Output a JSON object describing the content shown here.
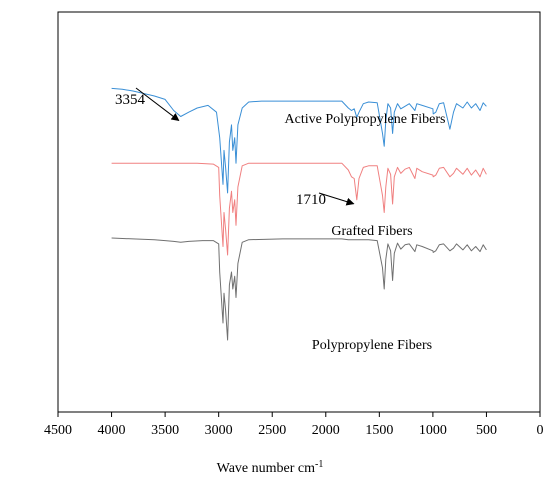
{
  "chart_data": {
    "type": "line",
    "title": "",
    "xlabel": "Wave number cm",
    "xlabel_sup": "-1",
    "ylabel": "",
    "xlim": [
      4500,
      0
    ],
    "x_reversed": true,
    "x_ticks": [
      4500,
      4000,
      3500,
      3000,
      2500,
      2000,
      1500,
      1000,
      500,
      0
    ],
    "grid": false,
    "legend": "none",
    "series": [
      {
        "name": "Active Polypropylene Fibers",
        "color": "#3a8fd6",
        "offset": 0.78,
        "points": [
          [
            4000,
            0.18
          ],
          [
            3900,
            0.17
          ],
          [
            3800,
            0.15
          ],
          [
            3700,
            0.12
          ],
          [
            3600,
            0.09
          ],
          [
            3500,
            0.05
          ],
          [
            3420,
            -0.08
          ],
          [
            3354,
            -0.15
          ],
          [
            3280,
            -0.1
          ],
          [
            3200,
            -0.05
          ],
          [
            3100,
            -0.02
          ],
          [
            3020,
            -0.1
          ],
          [
            2990,
            -0.4
          ],
          [
            2960,
            -0.95
          ],
          [
            2950,
            -0.55
          ],
          [
            2935,
            -0.75
          ],
          [
            2917,
            -1.05
          ],
          [
            2900,
            -0.45
          ],
          [
            2880,
            -0.25
          ],
          [
            2868,
            -0.55
          ],
          [
            2850,
            -0.4
          ],
          [
            2838,
            -0.7
          ],
          [
            2820,
            -0.25
          ],
          [
            2780,
            -0.05
          ],
          [
            2720,
            0.02
          ],
          [
            2600,
            0.03
          ],
          [
            2400,
            0.03
          ],
          [
            2200,
            0.03
          ],
          [
            2000,
            0.03
          ],
          [
            1850,
            0.03
          ],
          [
            1790,
            -0.05
          ],
          [
            1760,
            -0.08
          ],
          [
            1735,
            -0.06
          ],
          [
            1710,
            -0.16
          ],
          [
            1690,
            -0.1
          ],
          [
            1650,
            0.0
          ],
          [
            1600,
            0.02
          ],
          [
            1520,
            0.01
          ],
          [
            1470,
            -0.35
          ],
          [
            1455,
            -0.5
          ],
          [
            1440,
            -0.2
          ],
          [
            1420,
            0.0
          ],
          [
            1395,
            -0.05
          ],
          [
            1376,
            -0.35
          ],
          [
            1360,
            -0.1
          ],
          [
            1330,
            0.0
          ],
          [
            1300,
            -0.06
          ],
          [
            1260,
            -0.03
          ],
          [
            1220,
            0.0
          ],
          [
            1168,
            -0.08
          ],
          [
            1150,
            0.0
          ],
          [
            1100,
            -0.02
          ],
          [
            1000,
            -0.06
          ],
          [
            997,
            -0.12
          ],
          [
            973,
            -0.1
          ],
          [
            940,
            0.0
          ],
          [
            900,
            0.01
          ],
          [
            841,
            -0.3
          ],
          [
            808,
            -0.1
          ],
          [
            780,
            0.0
          ],
          [
            720,
            -0.05
          ],
          [
            680,
            0.02
          ],
          [
            640,
            -0.05
          ],
          [
            600,
            0.0
          ],
          [
            560,
            -0.08
          ],
          [
            530,
            0.01
          ],
          [
            500,
            -0.03
          ]
        ]
      },
      {
        "name": "Grafted Fibers",
        "color": "#f08080",
        "offset": 0.0,
        "points": [
          [
            4000,
            0.08
          ],
          [
            3800,
            0.08
          ],
          [
            3600,
            0.08
          ],
          [
            3400,
            0.08
          ],
          [
            3200,
            0.08
          ],
          [
            3050,
            0.07
          ],
          [
            3000,
            0.03
          ],
          [
            2990,
            -0.3
          ],
          [
            2960,
            -0.9
          ],
          [
            2950,
            -0.5
          ],
          [
            2935,
            -0.7
          ],
          [
            2917,
            -1.0
          ],
          [
            2900,
            -0.45
          ],
          [
            2880,
            -0.25
          ],
          [
            2868,
            -0.5
          ],
          [
            2850,
            -0.35
          ],
          [
            2838,
            -0.65
          ],
          [
            2820,
            -0.2
          ],
          [
            2780,
            0.05
          ],
          [
            2720,
            0.08
          ],
          [
            2400,
            0.08
          ],
          [
            2000,
            0.08
          ],
          [
            1850,
            0.08
          ],
          [
            1790,
            0.0
          ],
          [
            1760,
            -0.08
          ],
          [
            1735,
            -0.1
          ],
          [
            1710,
            -0.35
          ],
          [
            1690,
            -0.1
          ],
          [
            1650,
            0.03
          ],
          [
            1600,
            0.05
          ],
          [
            1520,
            0.05
          ],
          [
            1470,
            -0.3
          ],
          [
            1455,
            -0.5
          ],
          [
            1440,
            -0.2
          ],
          [
            1420,
            0.02
          ],
          [
            1395,
            -0.05
          ],
          [
            1376,
            -0.4
          ],
          [
            1360,
            -0.08
          ],
          [
            1330,
            0.03
          ],
          [
            1300,
            -0.04
          ],
          [
            1260,
            0.01
          ],
          [
            1220,
            0.03
          ],
          [
            1168,
            -0.1
          ],
          [
            1150,
            0.02
          ],
          [
            1100,
            -0.02
          ],
          [
            1000,
            -0.06
          ],
          [
            997,
            -0.08
          ],
          [
            973,
            -0.06
          ],
          [
            940,
            0.02
          ],
          [
            900,
            0.03
          ],
          [
            841,
            -0.08
          ],
          [
            808,
            -0.04
          ],
          [
            780,
            0.02
          ],
          [
            720,
            -0.05
          ],
          [
            680,
            0.02
          ],
          [
            640,
            -0.06
          ],
          [
            600,
            0.0
          ],
          [
            560,
            -0.08
          ],
          [
            530,
            0.02
          ],
          [
            500,
            -0.05
          ]
        ]
      },
      {
        "name": "Polypropylene Fibers",
        "color": "#707070",
        "offset": -0.9,
        "points": [
          [
            4000,
            0.1
          ],
          [
            3800,
            0.09
          ],
          [
            3600,
            0.08
          ],
          [
            3500,
            0.07
          ],
          [
            3420,
            0.06
          ],
          [
            3354,
            0.05
          ],
          [
            3280,
            0.06
          ],
          [
            3150,
            0.07
          ],
          [
            3050,
            0.07
          ],
          [
            3000,
            0.03
          ],
          [
            2990,
            -0.3
          ],
          [
            2960,
            -0.9
          ],
          [
            2950,
            -0.55
          ],
          [
            2935,
            -0.75
          ],
          [
            2917,
            -1.1
          ],
          [
            2900,
            -0.45
          ],
          [
            2880,
            -0.3
          ],
          [
            2868,
            -0.5
          ],
          [
            2850,
            -0.35
          ],
          [
            2838,
            -0.6
          ],
          [
            2820,
            -0.2
          ],
          [
            2780,
            0.05
          ],
          [
            2720,
            0.08
          ],
          [
            2400,
            0.09
          ],
          [
            2000,
            0.09
          ],
          [
            1850,
            0.09
          ],
          [
            1790,
            0.08
          ],
          [
            1650,
            0.08
          ],
          [
            1600,
            0.08
          ],
          [
            1520,
            0.07
          ],
          [
            1470,
            -0.25
          ],
          [
            1455,
            -0.5
          ],
          [
            1440,
            -0.15
          ],
          [
            1420,
            0.03
          ],
          [
            1395,
            -0.05
          ],
          [
            1376,
            -0.4
          ],
          [
            1360,
            -0.08
          ],
          [
            1330,
            0.04
          ],
          [
            1300,
            -0.03
          ],
          [
            1260,
            0.02
          ],
          [
            1220,
            0.03
          ],
          [
            1168,
            -0.06
          ],
          [
            1150,
            0.02
          ],
          [
            1100,
            0.0
          ],
          [
            1000,
            -0.05
          ],
          [
            997,
            -0.07
          ],
          [
            973,
            -0.05
          ],
          [
            940,
            0.02
          ],
          [
            900,
            0.03
          ],
          [
            841,
            -0.05
          ],
          [
            808,
            -0.02
          ],
          [
            780,
            0.03
          ],
          [
            720,
            -0.04
          ],
          [
            680,
            0.02
          ],
          [
            640,
            -0.05
          ],
          [
            600,
            0.0
          ],
          [
            560,
            -0.06
          ],
          [
            530,
            0.02
          ],
          [
            500,
            -0.04
          ]
        ]
      }
    ],
    "series_labels": [
      "Active Polypropylene Fibers",
      "Grafted Fibers",
      "Polypropylene Fibers"
    ],
    "annotations": [
      {
        "text": "3354",
        "series": 0,
        "x": 3354
      },
      {
        "text": "1710",
        "series": 1,
        "x": 1710
      }
    ]
  }
}
